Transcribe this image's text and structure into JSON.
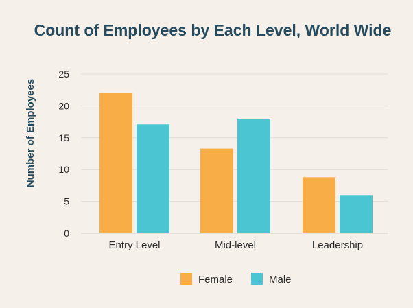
{
  "chart_data": {
    "type": "bar",
    "title": "Count of Employees by Each Level, World Wide",
    "xlabel": "",
    "ylabel": "Number of Employees",
    "categories": [
      "Entry Level",
      "Mid-level",
      "Leadership"
    ],
    "series": [
      {
        "name": "Female",
        "values": [
          22,
          13.3,
          8.8
        ],
        "color": "#f9ad46"
      },
      {
        "name": "Male",
        "values": [
          17.1,
          18,
          6
        ],
        "color": "#4cc5d3"
      }
    ],
    "yticks": [
      "0",
      "5",
      "10",
      "15",
      "20",
      "25"
    ],
    "ylim": [
      0,
      25
    ],
    "grid": true,
    "legend": "bottom"
  }
}
